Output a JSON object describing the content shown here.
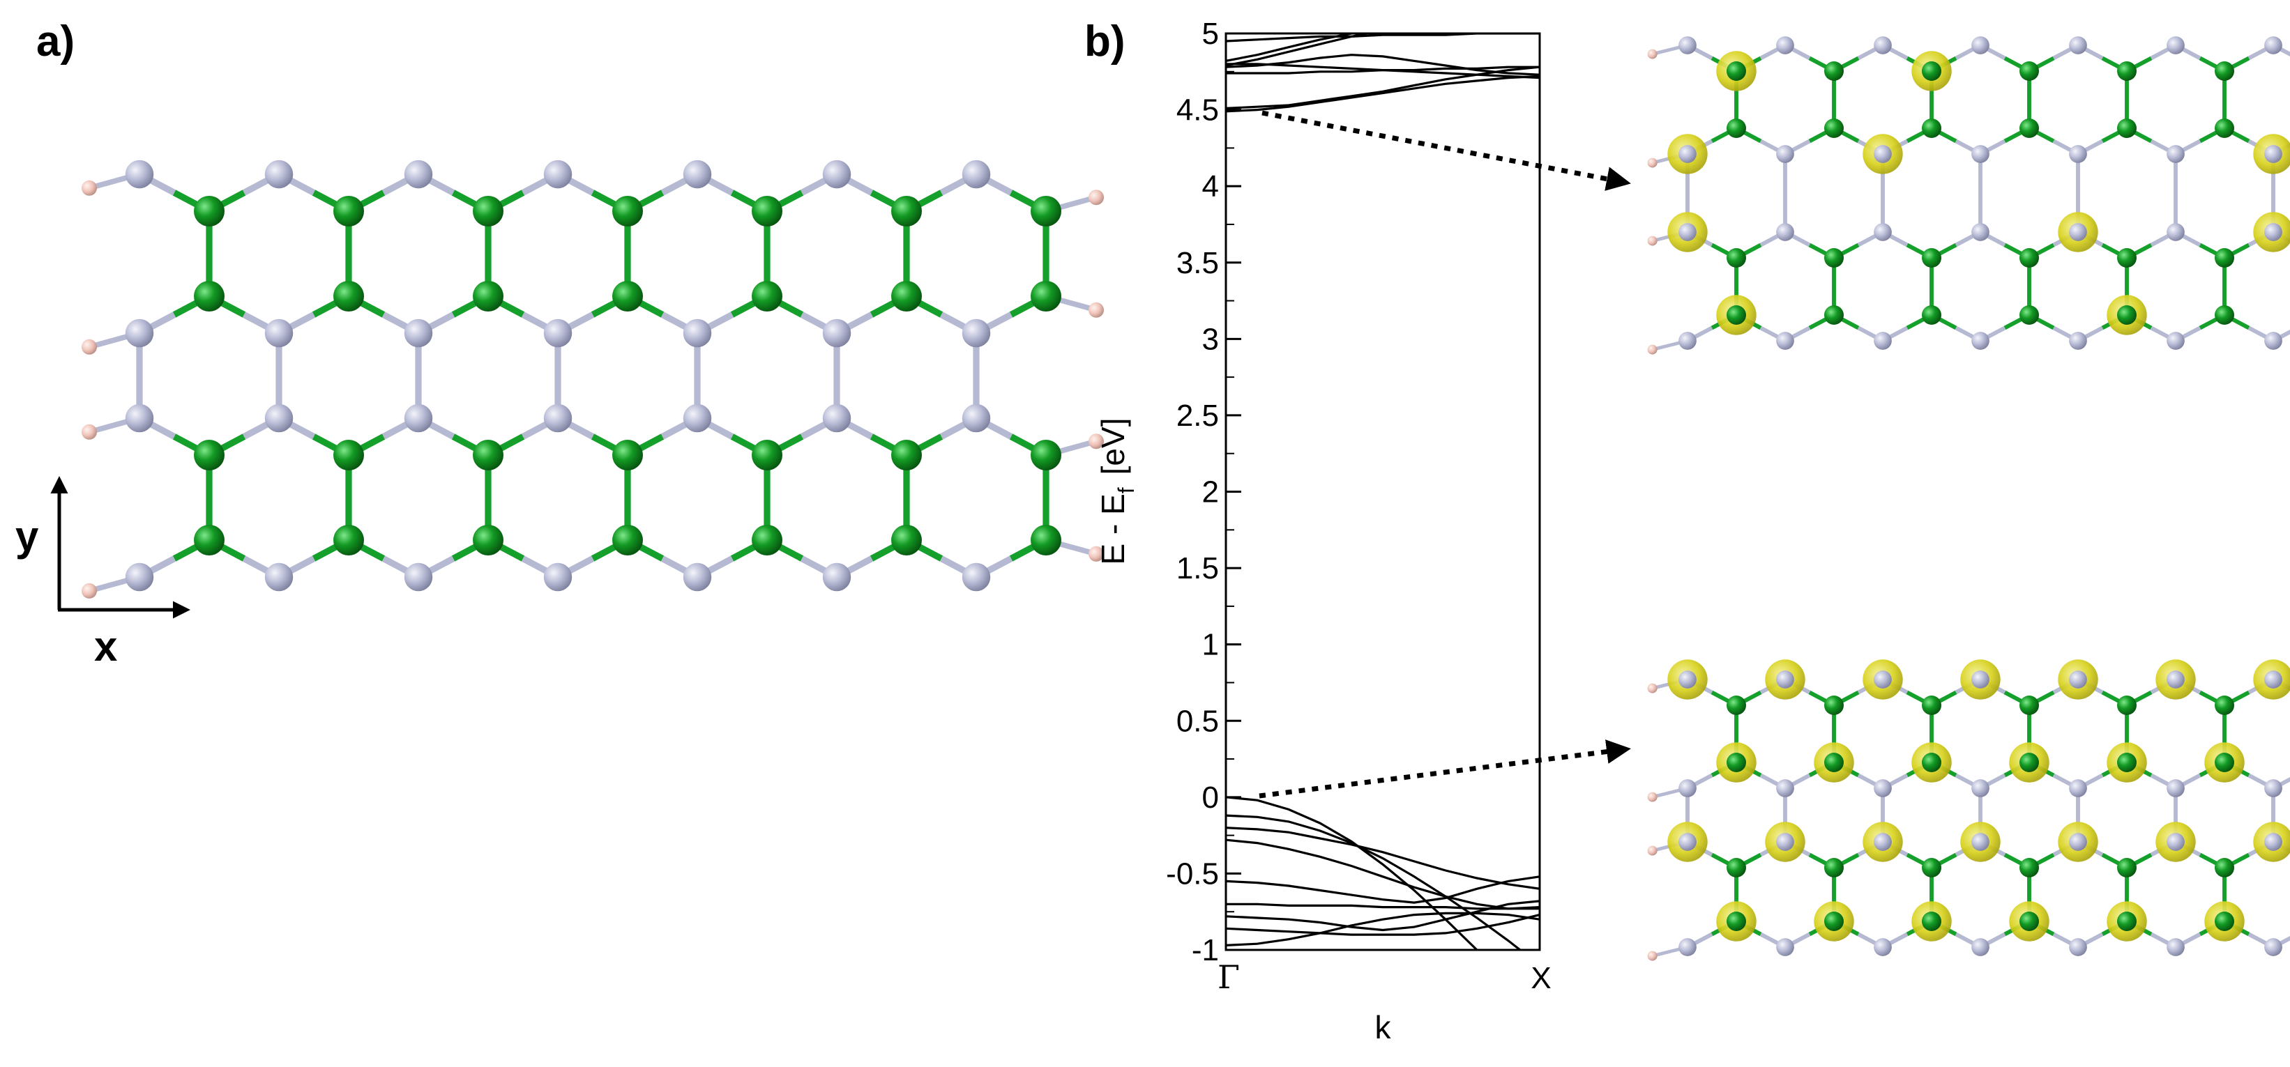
{
  "figure": {
    "panel_a": {
      "label": "a)",
      "axis_x_label": "x",
      "axis_y_label": "y",
      "colors": {
        "atom_green": "#0f8f1f",
        "atom_gray": "#b6b9d2",
        "atom_hydrogen": "#f0c6bc",
        "bond_green": "#14a02a",
        "bond_gray": "#b6b9d2"
      }
    },
    "panel_b": {
      "label": "b)",
      "isosurface_color": "#d9d21f"
    }
  },
  "chart_data": {
    "type": "line",
    "ylabel": "E - E",
    "ylabel_sub": "f",
    "ylabel_unit": "[eV]",
    "xlabel": "k",
    "ylim": [
      -1,
      5
    ],
    "x_ticks": [
      "Γ",
      "X"
    ],
    "y_ticks": [
      "-1",
      "-0.5",
      "0",
      "0.5",
      "1",
      "1.5",
      "2",
      "2.5",
      "3",
      "3.5",
      "4",
      "4.5",
      "5"
    ],
    "series": [
      {
        "x": [
          0,
          0.1,
          0.2,
          0.3,
          0.4,
          0.5,
          0.6,
          0.7,
          0.8,
          0.9,
          1
        ],
        "y": [
          0.0,
          -0.02,
          -0.08,
          -0.17,
          -0.29,
          -0.44,
          -0.61,
          -0.8,
          -1.0,
          -1.2,
          -1.4
        ]
      },
      {
        "x": [
          0,
          0.1,
          0.2,
          0.3,
          0.4,
          0.5,
          0.6,
          0.7,
          0.8,
          0.9,
          1
        ],
        "y": [
          -0.12,
          -0.13,
          -0.16,
          -0.22,
          -0.3,
          -0.4,
          -0.52,
          -0.65,
          -0.79,
          -0.94,
          -1.1
        ]
      },
      {
        "x": [
          0,
          0.1,
          0.2,
          0.3,
          0.4,
          0.5,
          0.6,
          0.7,
          0.8,
          0.9,
          1
        ],
        "y": [
          -0.2,
          -0.21,
          -0.23,
          -0.27,
          -0.31,
          -0.36,
          -0.42,
          -0.48,
          -0.53,
          -0.57,
          -0.6
        ]
      },
      {
        "x": [
          0,
          0.1,
          0.2,
          0.3,
          0.4,
          0.5,
          0.6,
          0.7,
          0.8,
          0.9,
          1
        ],
        "y": [
          -0.28,
          -0.3,
          -0.34,
          -0.39,
          -0.45,
          -0.52,
          -0.59,
          -0.65,
          -0.7,
          -0.73,
          -0.72
        ]
      },
      {
        "x": [
          0,
          0.1,
          0.2,
          0.3,
          0.4,
          0.5,
          0.6,
          0.7,
          0.8,
          0.9,
          1
        ],
        "y": [
          -0.55,
          -0.56,
          -0.58,
          -0.61,
          -0.64,
          -0.67,
          -0.69,
          -0.66,
          -0.6,
          -0.55,
          -0.52
        ]
      },
      {
        "x": [
          0,
          0.1,
          0.2,
          0.3,
          0.4,
          0.5,
          0.6,
          0.7,
          0.8,
          0.9,
          1
        ],
        "y": [
          -0.7,
          -0.7,
          -0.71,
          -0.71,
          -0.71,
          -0.72,
          -0.72,
          -0.72,
          -0.73,
          -0.73,
          -0.73
        ]
      },
      {
        "x": [
          0,
          0.1,
          0.2,
          0.3,
          0.4,
          0.5,
          0.6,
          0.7,
          0.8,
          0.9,
          1
        ],
        "y": [
          -0.78,
          -0.79,
          -0.8,
          -0.82,
          -0.85,
          -0.87,
          -0.85,
          -0.8,
          -0.75,
          -0.7,
          -0.68
        ]
      },
      {
        "x": [
          0,
          0.1,
          0.2,
          0.3,
          0.4,
          0.5,
          0.6,
          0.7,
          0.8,
          0.9,
          1
        ],
        "y": [
          -0.86,
          -0.87,
          -0.88,
          -0.89,
          -0.9,
          -0.9,
          -0.9,
          -0.89,
          -0.86,
          -0.82,
          -0.77
        ]
      },
      {
        "x": [
          0,
          0.1,
          0.2,
          0.3,
          0.4,
          0.5,
          0.6,
          0.7,
          0.8,
          0.9,
          1
        ],
        "y": [
          -0.97,
          -0.96,
          -0.93,
          -0.89,
          -0.84,
          -0.8,
          -0.77,
          -0.76,
          -0.76,
          -0.77,
          -0.8
        ]
      },
      {
        "x": [
          0,
          0.1,
          0.2,
          0.3,
          0.4,
          0.5,
          0.6,
          0.7,
          0.8,
          0.9,
          1
        ],
        "y": [
          4.49,
          4.5,
          4.52,
          4.55,
          4.58,
          4.61,
          4.64,
          4.67,
          4.69,
          4.71,
          4.72
        ]
      },
      {
        "x": [
          0,
          0.1,
          0.2,
          0.3,
          0.4,
          0.5,
          0.6,
          0.7,
          0.8,
          0.9,
          1
        ],
        "y": [
          4.51,
          4.52,
          4.53,
          4.56,
          4.59,
          4.62,
          4.66,
          4.7,
          4.73,
          4.76,
          4.78
        ]
      },
      {
        "x": [
          0,
          0.1,
          0.2,
          0.3,
          0.4,
          0.5,
          0.6,
          0.7,
          0.8,
          0.9,
          1
        ],
        "y": [
          4.74,
          4.74,
          4.74,
          4.75,
          4.75,
          4.76,
          4.76,
          4.77,
          4.77,
          4.78,
          4.78
        ]
      },
      {
        "x": [
          0,
          0.1,
          0.2,
          0.3,
          0.4,
          0.5,
          0.6,
          0.7,
          0.8,
          0.9,
          1
        ],
        "y": [
          4.78,
          4.79,
          4.81,
          4.84,
          4.86,
          4.85,
          4.82,
          4.79,
          4.76,
          4.74,
          4.73
        ]
      },
      {
        "x": [
          0,
          0.1,
          0.2,
          0.3,
          0.4,
          0.5,
          0.6,
          0.7,
          0.8,
          0.9,
          1
        ],
        "y": [
          4.79,
          4.83,
          4.88,
          4.93,
          4.98,
          5.02,
          5.06,
          5.1,
          5.13,
          5.16,
          5.18
        ]
      },
      {
        "x": [
          0,
          0.1,
          0.2,
          0.3,
          0.4,
          0.5,
          0.6,
          0.7,
          0.8,
          0.9,
          1
        ],
        "y": [
          4.8,
          4.8,
          4.79,
          4.78,
          4.77,
          4.76,
          4.75,
          4.74,
          4.73,
          4.72,
          4.71
        ]
      },
      {
        "x": [
          0,
          0.1,
          0.2,
          0.3,
          0.4,
          0.5,
          0.6,
          0.7,
          0.8,
          0.9,
          1
        ],
        "y": [
          4.82,
          4.86,
          4.91,
          4.96,
          5.0,
          5.04,
          5.08,
          5.11,
          5.14,
          5.17,
          5.2
        ]
      },
      {
        "x": [
          0,
          0.1,
          0.2,
          0.3,
          0.4,
          0.5,
          0.6,
          0.7,
          0.8,
          0.9,
          1
        ],
        "y": [
          4.95,
          4.96,
          4.97,
          4.98,
          4.98,
          4.99,
          4.99,
          4.99,
          5.0,
          5.0,
          5.0
        ]
      }
    ]
  }
}
